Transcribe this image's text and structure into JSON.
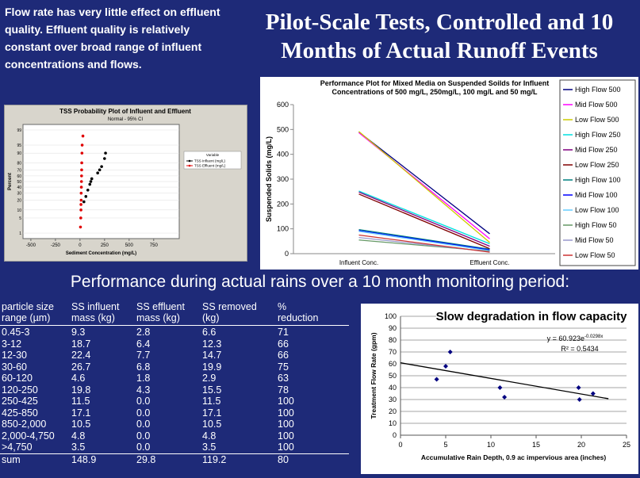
{
  "left_text": "Flow rate has very little effect on effluent quality. Effluent quality is relatively constant over broad range of influent concentrations and flows.",
  "title": "Pilot-Scale Tests, Controlled and 10 Months of Actual Runoff Events",
  "subtitle": "Performance during actual rains over a 10 month monitoring period:",
  "chart_data": [
    {
      "type": "line",
      "title": "Performance Plot for Mixed Media on Suspended Soilds for Influent Concentrations of 500 mg/L, 250mg/L, 100 mg/L and 50 mg/L",
      "y_label": "Suspended Solids (mg/L)",
      "categories": [
        "Influent Conc.",
        "Effluent Conc."
      ],
      "ylim": [
        0,
        600
      ],
      "yticks": [
        0,
        100,
        200,
        300,
        400,
        500,
        600
      ],
      "legend": "right",
      "series": [
        {
          "name": "High Flow 500",
          "color": "#000080",
          "values": [
            490,
            80
          ]
        },
        {
          "name": "Mid Flow 500",
          "color": "#ff00ff",
          "values": [
            487,
            60
          ]
        },
        {
          "name": "Low Flow 500",
          "color": "#cccc00",
          "values": [
            492,
            45
          ]
        },
        {
          "name": "High Flow 250",
          "color": "#00e0e0",
          "values": [
            252,
            40
          ]
        },
        {
          "name": "Mid Flow 250",
          "color": "#800080",
          "values": [
            248,
            30
          ]
        },
        {
          "name": "Low Flow 250",
          "color": "#800000",
          "values": [
            240,
            20
          ]
        },
        {
          "name": "High Flow 100",
          "color": "#008080",
          "values": [
            97,
            18
          ]
        },
        {
          "name": "Mid Flow 100",
          "color": "#0000ff",
          "values": [
            93,
            15
          ]
        },
        {
          "name": "Low Flow 100",
          "color": "#66ccff",
          "values": [
            90,
            12
          ]
        },
        {
          "name": "High Flow 50",
          "color": "#669966",
          "values": [
            55,
            10
          ]
        },
        {
          "name": "Mid Flow 50",
          "color": "#9999cc",
          "values": [
            65,
            8
          ]
        },
        {
          "name": "Low Flow 50",
          "color": "#cc3333",
          "values": [
            75,
            6
          ]
        }
      ]
    },
    {
      "type": "scatter",
      "title": "TSS Probability Plot of Influent and Effluent",
      "subtitle": "Normal - 95% CI",
      "x_label": "Sediment Concentration (mg/L)",
      "y_label": "Percent",
      "legend_title": "Variable",
      "yscale": "probability",
      "xlim": [
        -580,
        1010
      ],
      "ylim": [
        0.5,
        99.5
      ],
      "xticks": [
        -500,
        -250,
        0,
        250,
        500,
        750
      ],
      "yticks": [
        1,
        5,
        10,
        20,
        30,
        40,
        50,
        60,
        70,
        80,
        90,
        95,
        99
      ],
      "series": [
        {
          "name": "TSS Influent (mg/L)",
          "color": "#000000",
          "x": [
            40,
            60,
            80,
            100,
            110,
            120,
            180,
            200,
            220,
            250,
            260
          ],
          "values": [
            18,
            25,
            35,
            45,
            50,
            55,
            65,
            70,
            75,
            85,
            90
          ]
        },
        {
          "name": "TSS Effluent (mg/L)",
          "color": "#e00000",
          "x": [
            5,
            8,
            10,
            10,
            12,
            12,
            14,
            15,
            16,
            17,
            18,
            20,
            22,
            30
          ],
          "values": [
            2,
            5,
            10,
            15,
            20,
            30,
            40,
            50,
            60,
            70,
            80,
            90,
            95,
            98
          ]
        }
      ]
    },
    {
      "type": "scatter",
      "title": "Slow degradation in flow capacity",
      "equation": "y = 60.923e",
      "equation_exponent": "-0.0298x",
      "r_squared": "R² = 0.5434",
      "x_label": "Accumulative Rain Depth, 0.9 ac impervious area (inches)",
      "y_label": "Treatment Flow Rate (gpm)",
      "xlim": [
        0,
        25
      ],
      "ylim": [
        0,
        100
      ],
      "xticks": [
        0,
        5,
        10,
        15,
        20,
        25
      ],
      "yticks": [
        0,
        10,
        20,
        30,
        40,
        50,
        60,
        70,
        80,
        90,
        100
      ],
      "grid": true,
      "series": [
        {
          "color": "#000080",
          "x": [
            4,
            5,
            5.5,
            11,
            11.5,
            19.7,
            19.8,
            21.3
          ],
          "values": [
            47,
            58,
            70,
            40,
            32,
            40,
            30,
            35
          ]
        }
      ],
      "trendline": {
        "color": "#000000",
        "x": [
          0,
          23
        ],
        "values": [
          60.9,
          30.7
        ]
      }
    }
  ],
  "table": {
    "header": [
      [
        "particle size",
        "range (µm)"
      ],
      [
        "SS influent",
        "mass (kg)"
      ],
      [
        "SS effluent",
        "mass (kg)"
      ],
      [
        "SS removed",
        "(kg)"
      ],
      [
        "%",
        "reduction"
      ]
    ],
    "rows": [
      [
        "0.45-3",
        "9.3",
        "2.8",
        "6.6",
        "71"
      ],
      [
        "3-12",
        "18.7",
        "6.4",
        "12.3",
        "66"
      ],
      [
        "12-30",
        "22.4",
        "7.7",
        "14.7",
        "66"
      ],
      [
        "30-60",
        "26.7",
        "6.8",
        "19.9",
        "75"
      ],
      [
        "60-120",
        "4.6",
        "1.8",
        "2.9",
        "63"
      ],
      [
        "120-250",
        "19.8",
        "4.3",
        "15.5",
        "78"
      ],
      [
        "250-425",
        "11.5",
        "0.0",
        "11.5",
        "100"
      ],
      [
        "425-850",
        "17.1",
        "0.0",
        "17.1",
        "100"
      ],
      [
        "850-2,000",
        "10.5",
        "0.0",
        "10.5",
        "100"
      ],
      [
        "2,000-4,750",
        "4.8",
        "0.0",
        "4.8",
        "100"
      ],
      [
        ">4,750",
        "3.5",
        "0.0",
        "3.5",
        "100"
      ]
    ],
    "sum": [
      "sum",
      "148.9",
      "29.8",
      "119.2",
      "80"
    ]
  }
}
